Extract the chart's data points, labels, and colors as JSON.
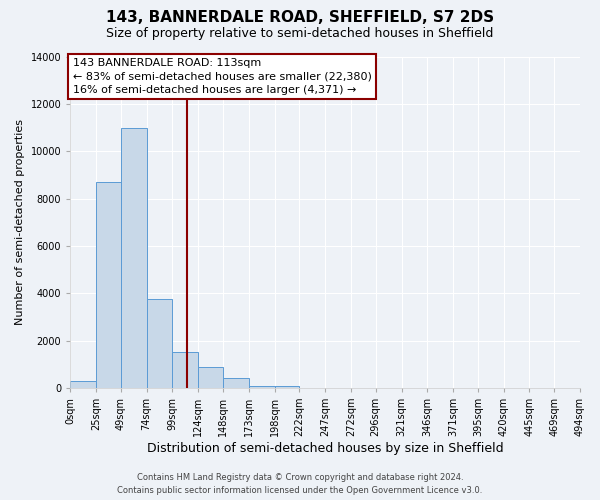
{
  "title": "143, BANNERDALE ROAD, SHEFFIELD, S7 2DS",
  "subtitle": "Size of property relative to semi-detached houses in Sheffield",
  "xlabel": "Distribution of semi-detached houses by size in Sheffield",
  "ylabel": "Number of semi-detached properties",
  "bin_edges": [
    0,
    25,
    49,
    74,
    99,
    124,
    148,
    173,
    198,
    222,
    247,
    272,
    296,
    321,
    346,
    371,
    395,
    420,
    445,
    469,
    494
  ],
  "bin_counts": [
    300,
    8700,
    11000,
    3750,
    1500,
    900,
    400,
    100,
    80,
    0,
    0,
    0,
    0,
    0,
    0,
    0,
    0,
    0,
    0,
    0
  ],
  "bar_color": "#c8d8e8",
  "bar_edge_color": "#5b9bd5",
  "property_size": 113,
  "vline_color": "#8b0000",
  "annotation_line1": "143 BANNERDALE ROAD: 113sqm",
  "annotation_line2": "← 83% of semi-detached houses are smaller (22,380)",
  "annotation_line3": "16% of semi-detached houses are larger (4,371) →",
  "annotation_box_color": "#ffffff",
  "annotation_box_edge": "#8b0000",
  "footer1": "Contains HM Land Registry data © Crown copyright and database right 2024.",
  "footer2": "Contains public sector information licensed under the Open Government Licence v3.0.",
  "background_color": "#eef2f7",
  "ylim": [
    0,
    14000
  ],
  "yticks": [
    0,
    2000,
    4000,
    6000,
    8000,
    10000,
    12000,
    14000
  ],
  "xtick_labels": [
    "0sqm",
    "25sqm",
    "49sqm",
    "74sqm",
    "99sqm",
    "124sqm",
    "148sqm",
    "173sqm",
    "198sqm",
    "222sqm",
    "247sqm",
    "272sqm",
    "296sqm",
    "321sqm",
    "346sqm",
    "371sqm",
    "395sqm",
    "420sqm",
    "445sqm",
    "469sqm",
    "494sqm"
  ],
  "title_fontsize": 11,
  "subtitle_fontsize": 9,
  "xlabel_fontsize": 9,
  "ylabel_fontsize": 8,
  "tick_fontsize": 7,
  "annotation_fontsize": 8,
  "footer_fontsize": 6
}
